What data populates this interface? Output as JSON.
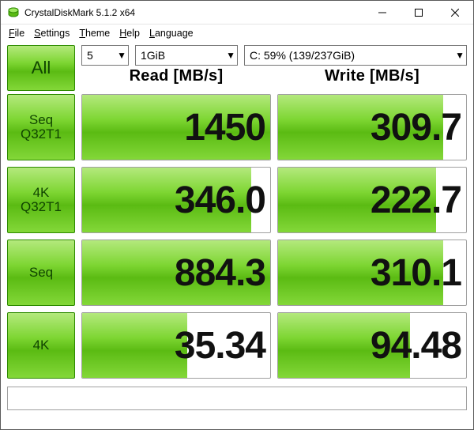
{
  "window": {
    "title": "CrystalDiskMark 5.1.2 x64"
  },
  "menu": {
    "file": "File",
    "settings": "Settings",
    "theme": "Theme",
    "help": "Help",
    "language": "Language"
  },
  "controls": {
    "runs": "5",
    "size": "1GiB",
    "drive": "C: 59% (139/237GiB)"
  },
  "headers": {
    "read": "Read [MB/s]",
    "write": "Write [MB/s]"
  },
  "buttons": {
    "all": "All",
    "seq_q32t1": "Seq\nQ32T1",
    "k4_q32t1": "4K\nQ32T1",
    "seq": "Seq",
    "k4": "4K"
  },
  "results": {
    "seq_q32t1": {
      "read": "1450",
      "read_fill": 100,
      "write": "309.7",
      "write_fill": 88
    },
    "k4_q32t1": {
      "read": "346.0",
      "read_fill": 90,
      "write": "222.7",
      "write_fill": 84
    },
    "seq": {
      "read": "884.3",
      "read_fill": 100,
      "write": "310.1",
      "write_fill": 88
    },
    "k4": {
      "read": "35.34",
      "read_fill": 56,
      "write": "94.48",
      "write_fill": 70
    }
  },
  "colors": {
    "button_border": "#2d8a00",
    "gradient_light": "#c9f09a",
    "gradient_mid1": "#7ed633",
    "gradient_mid2": "#5bbb13",
    "gradient_end": "#8bdd40",
    "cell_border": "#a0a0a0",
    "text": "#111111",
    "background": "#ffffff"
  },
  "statusbar": ""
}
